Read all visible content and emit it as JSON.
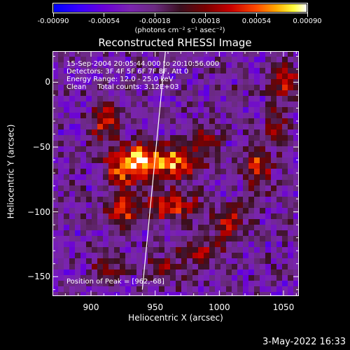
{
  "colorbar": {
    "tick_labels": [
      "-0.00090",
      "-0.00054",
      "-0.00018",
      "0.00018",
      "0.00054",
      "0.00090"
    ],
    "tick_values": [
      -0.0009,
      -0.00054,
      -0.00018,
      0.00018,
      0.00054,
      0.0009
    ],
    "range": [
      -0.0009,
      0.0009
    ],
    "units_label": "(photons cm⁻² s⁻¹ asec⁻²)"
  },
  "chart_data": {
    "type": "heatmap",
    "title": "Reconstructed RHESSI Image",
    "xlabel": "Heliocentric X (arcsec)",
    "ylabel": "Heliocentric Y (arcsec)",
    "xlim": [
      870,
      1062
    ],
    "ylim": [
      -165,
      24
    ],
    "x_ticks": [
      900,
      950,
      1000,
      1050
    ],
    "y_ticks": [
      0,
      -50,
      -100,
      -150
    ],
    "x_tick_labels": [
      "900",
      "950",
      "1000",
      "1050"
    ],
    "y_tick_labels": [
      "0",
      "−50",
      "−100",
      "−150"
    ],
    "annotations": [
      "15-Sep-2004 20:05:44.000 to 20:10:56.000",
      "Detectors: 3F 4F 5F 6F 7F 8F, Att 0",
      "Energy Range: 12.0 - 25.0 keV",
      "Clean     Total counts: 3.12E+03"
    ],
    "peak_label": "Position of Peak = [962,-68]",
    "peak": [
      962,
      -68
    ],
    "limb_line": [
      [
        940,
        -160
      ],
      [
        958,
        24
      ]
    ],
    "bright_regions": [
      {
        "x": 925,
        "y": -65,
        "sx": 9,
        "sy": 10,
        "a": 0.00085
      },
      {
        "x": 940,
        "y": -60,
        "sx": 8,
        "sy": 9,
        "a": 0.0007
      },
      {
        "x": 965,
        "y": -62,
        "sx": 14,
        "sy": 9,
        "a": 0.0009
      },
      {
        "x": 962,
        "y": -95,
        "sx": 14,
        "sy": 8,
        "a": 0.0007
      },
      {
        "x": 925,
        "y": -98,
        "sx": 9,
        "sy": 9,
        "a": 0.00065
      },
      {
        "x": 910,
        "y": -32,
        "sx": 8,
        "sy": 12,
        "a": 0.00055
      },
      {
        "x": 1030,
        "y": -65,
        "sx": 8,
        "sy": 10,
        "a": 0.0007
      },
      {
        "x": 1008,
        "y": -110,
        "sx": 8,
        "sy": 10,
        "a": 0.00055
      },
      {
        "x": 985,
        "y": -130,
        "sx": 12,
        "sy": 8,
        "a": 0.0005
      },
      {
        "x": 1052,
        "y": 0,
        "sx": 7,
        "sy": 10,
        "a": 0.0006
      },
      {
        "x": 1045,
        "y": -30,
        "sx": 6,
        "sy": 12,
        "a": 0.00045
      },
      {
        "x": 915,
        "y": -140,
        "sx": 10,
        "sy": 7,
        "a": 0.0004
      },
      {
        "x": 990,
        "y": -45,
        "sx": 8,
        "sy": 7,
        "a": 0.00045
      },
      {
        "x": 955,
        "y": -145,
        "sx": 9,
        "sy": 6,
        "a": 0.00045
      }
    ]
  },
  "timestamp": "3-May-2022 16:33"
}
